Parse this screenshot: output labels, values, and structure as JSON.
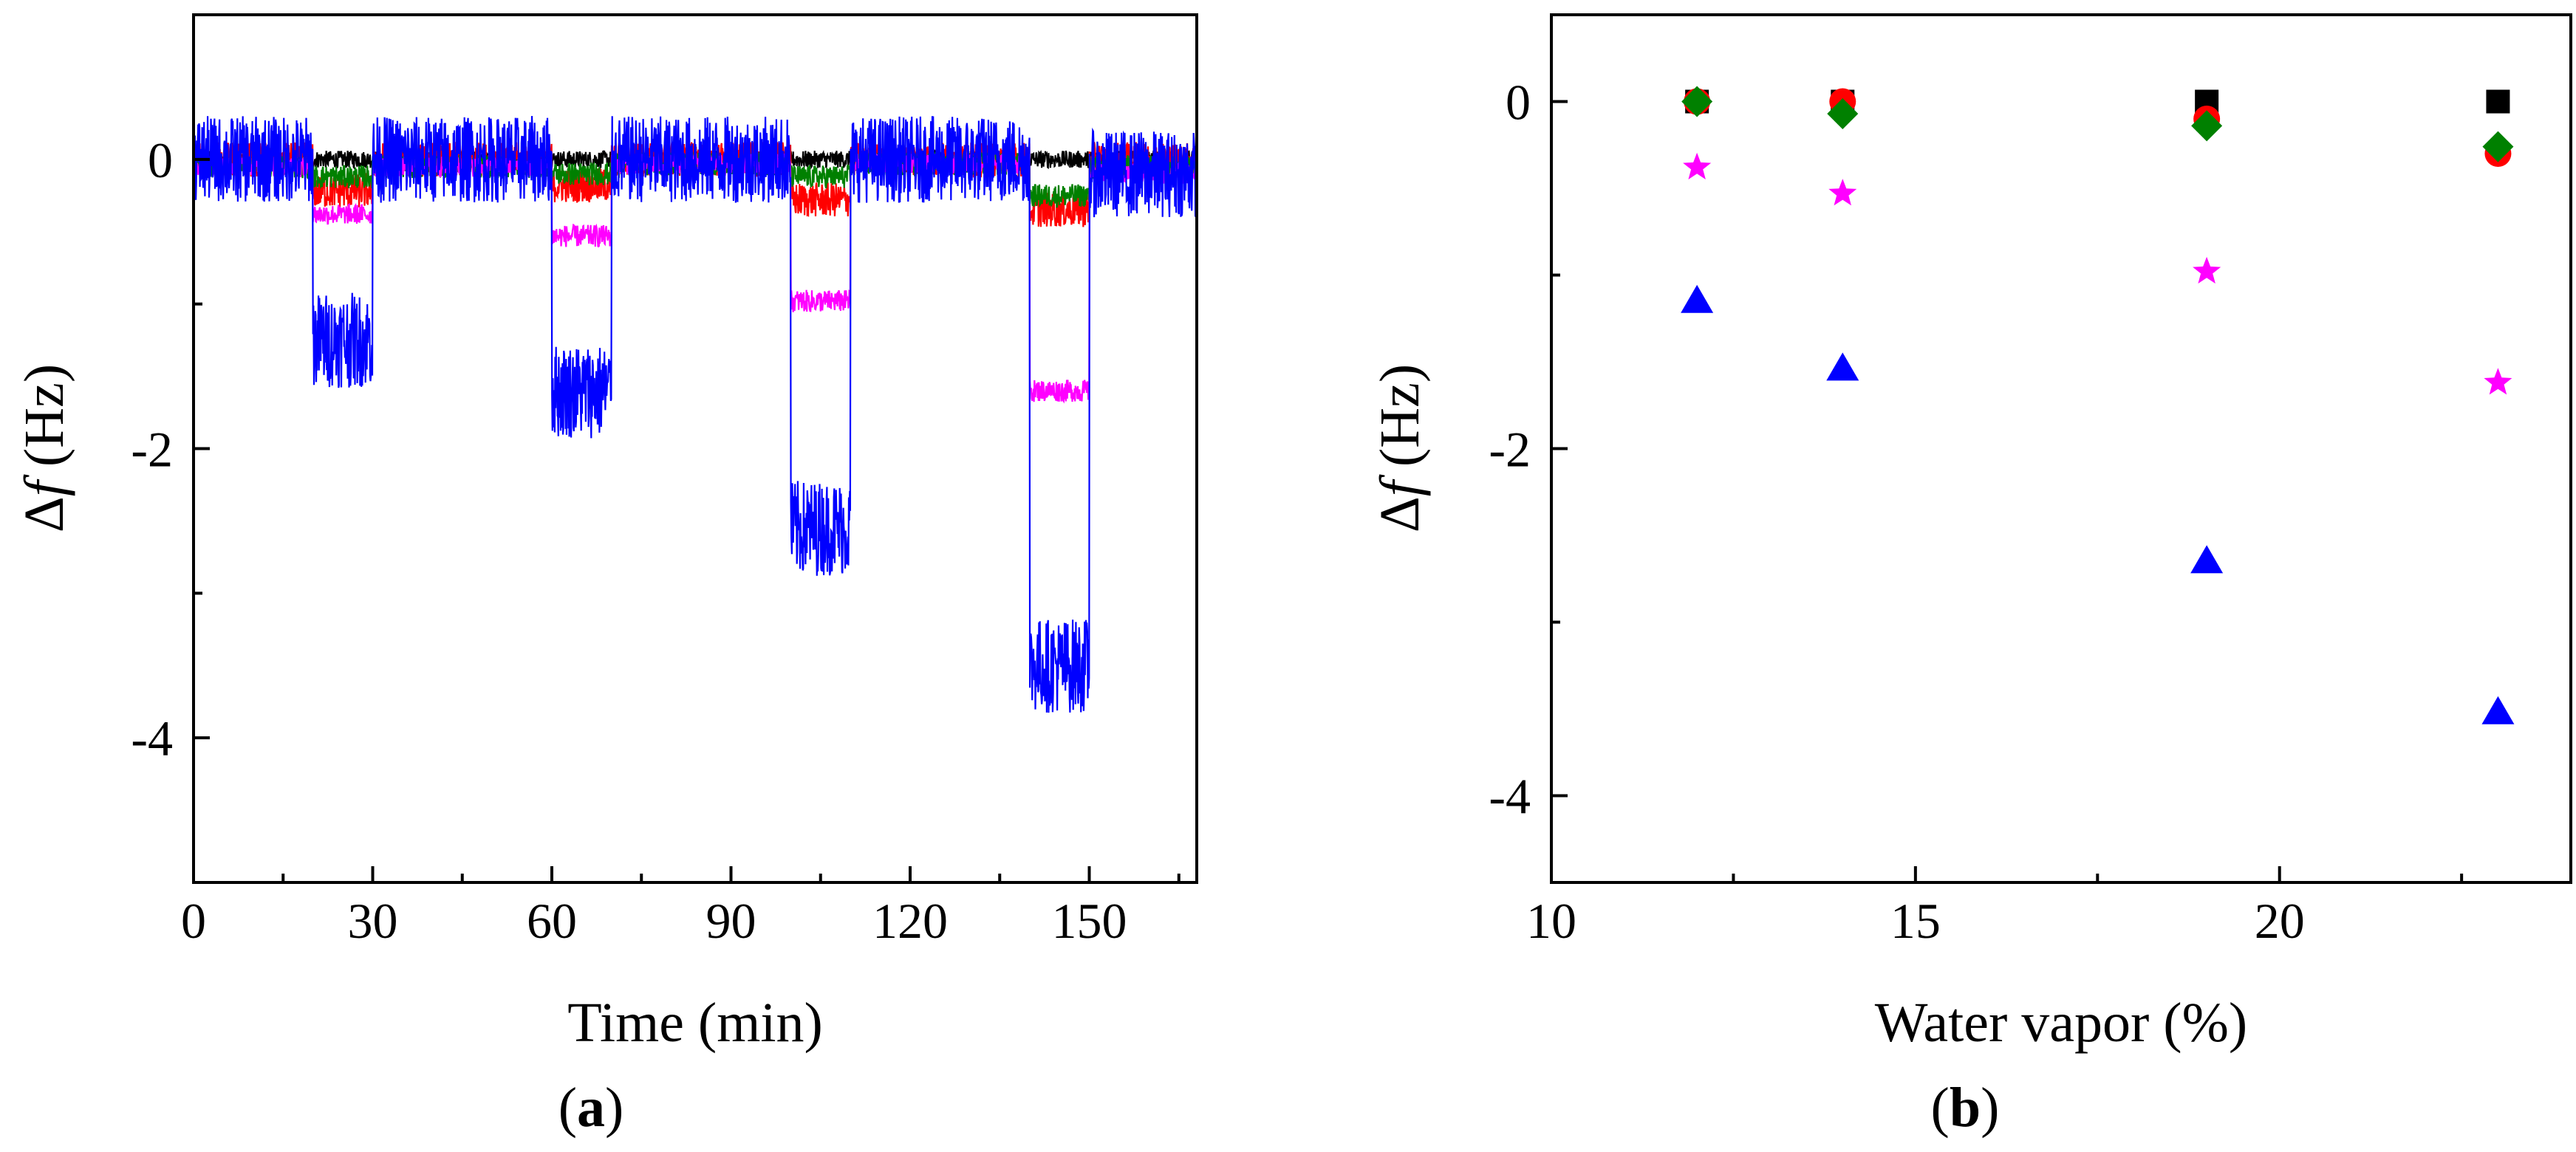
{
  "figure": {
    "panel_a_label": {
      "open": "(",
      "letter": "a",
      "close": ")"
    },
    "panel_b_label": {
      "open": "(",
      "letter": "b",
      "close": ")"
    }
  },
  "chart_data": [
    {
      "type": "line",
      "panel": "a",
      "xlabel": "Time (min)",
      "ylabel": {
        "delta": "Δ",
        "var": "f",
        "unit": " (Hz)"
      },
      "xlim": [
        0,
        168
      ],
      "ylim": [
        -5,
        1
      ],
      "xticks": [
        0,
        30,
        60,
        90,
        120,
        150
      ],
      "yticks": [
        0,
        -2,
        -4
      ],
      "grid": false,
      "series": [
        {
          "color": "#000000",
          "noise": 0.06,
          "steps": [
            [
              0,
              0
            ],
            [
              168,
              0
            ]
          ]
        },
        {
          "color": "#ff0000",
          "noise": 0.12,
          "steps": [
            [
              0,
              0
            ],
            [
              20,
              -0.22
            ],
            [
              30,
              0
            ],
            [
              60,
              -0.18
            ],
            [
              70,
              0
            ],
            [
              100,
              -0.28
            ],
            [
              110,
              0
            ],
            [
              140,
              -0.35
            ],
            [
              150,
              0
            ],
            [
              168,
              0
            ]
          ]
        },
        {
          "color": "#008000",
          "noise": 0.08,
          "steps": [
            [
              0,
              -0.05
            ],
            [
              20,
              -0.12
            ],
            [
              30,
              -0.05
            ],
            [
              60,
              -0.1
            ],
            [
              70,
              -0.03
            ],
            [
              100,
              -0.12
            ],
            [
              110,
              -0.03
            ],
            [
              140,
              -0.25
            ],
            [
              150,
              -0.05
            ],
            [
              168,
              -0.05
            ]
          ]
        },
        {
          "color": "#ff00ff",
          "noise": 0.07,
          "steps": [
            [
              0,
              -0.05
            ],
            [
              20,
              -0.38
            ],
            [
              30,
              -0.05
            ],
            [
              60,
              -0.53
            ],
            [
              70,
              -0.03
            ],
            [
              100,
              -0.98
            ],
            [
              110,
              -0.03
            ],
            [
              140,
              -1.6
            ],
            [
              150,
              -0.1
            ],
            [
              168,
              -0.05
            ]
          ]
        },
        {
          "color": "#0000ff",
          "noise": 0.3,
          "steps": [
            [
              0,
              0
            ],
            [
              20,
              -1.25
            ],
            [
              30,
              0
            ],
            [
              60,
              -1.6
            ],
            [
              70,
              0
            ],
            [
              100,
              -2.55
            ],
            [
              110,
              0
            ],
            [
              140,
              -3.5
            ],
            [
              150,
              -0.1
            ],
            [
              168,
              0
            ]
          ]
        }
      ]
    },
    {
      "type": "scatter",
      "panel": "b",
      "xlabel": "Water vapor (%)",
      "ylabel": {
        "delta": "Δ",
        "var": "f",
        "unit": " (Hz)"
      },
      "xlim": [
        10,
        24
      ],
      "ylim": [
        -4.5,
        0.5
      ],
      "xticks": [
        10,
        15,
        20
      ],
      "yticks": [
        0,
        -2,
        -4
      ],
      "grid": false,
      "series": [
        {
          "marker": "square",
          "color": "#000000",
          "x": [
            12,
            14,
            19,
            23
          ],
          "y": [
            0,
            0,
            0,
            0
          ]
        },
        {
          "marker": "circle",
          "color": "#ff0000",
          "x": [
            12,
            14,
            19,
            23
          ],
          "y": [
            0,
            0,
            -0.1,
            -0.3
          ]
        },
        {
          "marker": "diamond",
          "color": "#008000",
          "x": [
            12,
            14,
            19,
            23
          ],
          "y": [
            0,
            -0.07,
            -0.14,
            -0.26
          ]
        },
        {
          "marker": "star",
          "color": "#ff00ff",
          "x": [
            12,
            14,
            19,
            23
          ],
          "y": [
            -0.38,
            -0.53,
            -0.98,
            -1.62
          ]
        },
        {
          "marker": "triangle",
          "color": "#0000ff",
          "x": [
            12,
            14,
            19,
            23
          ],
          "y": [
            -1.15,
            -1.54,
            -2.65,
            -3.52
          ]
        }
      ]
    }
  ]
}
